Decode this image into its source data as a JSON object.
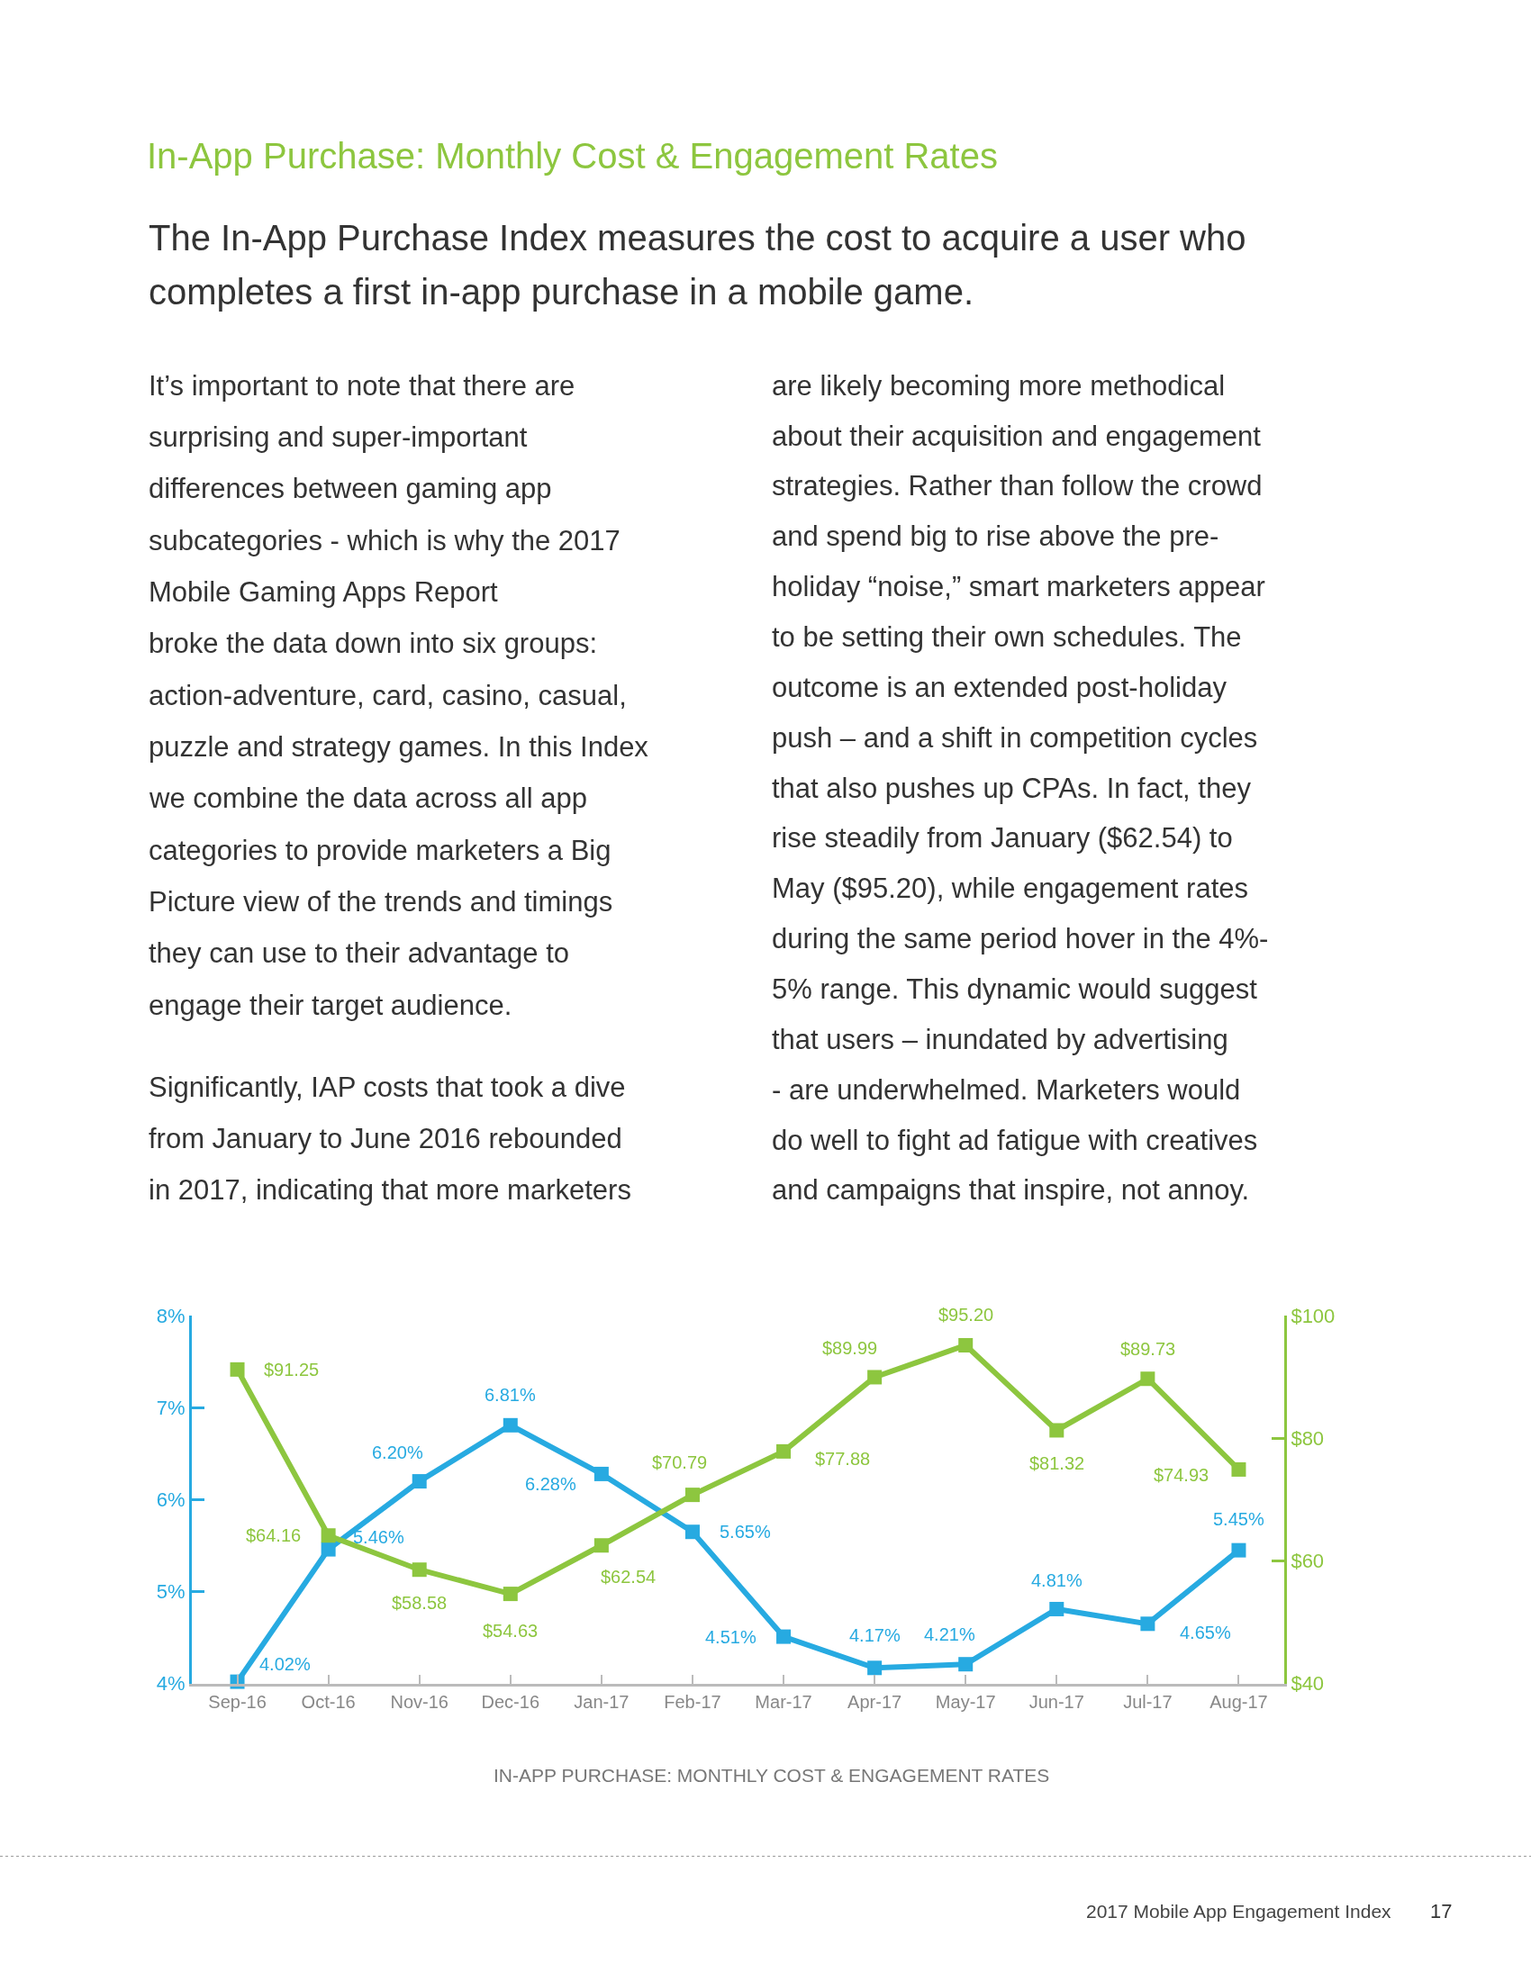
{
  "chart_data": {
    "type": "line",
    "title": "In-App Purchase: Monthly Cost & Engagement Rates",
    "subtitle": "The In-App Purchase Index measures the cost to acquire a user who\ncompletes a first in-app purchase in a mobile game.",
    "annotations": [
      "It’s important to note that there are\nsurprising and super-important\ndifferences between gaming app\nsubcategories - which is why the 2017\nMobile Gaming Apps Report\nbroke the data down into six groups:\naction-adventure, card, casino, casual,\npuzzle and strategy games. In this Index\nwe combine the data across all app\ncategories to provide marketers a Big\nPicture view of the trends and timings\nthey can use to their advantage to\nengage their target audience.",
      "Significantly, IAP costs that took a dive\nfrom January to June 2016 rebounded\nin 2017, indicating that more marketers",
      "are likely becoming more methodical\nabout their acquisition and engagement\nstrategies. Rather than follow the crowd\nand spend big to rise above the pre-\nholiday “noise,” smart marketers appear\nto be setting their own schedules. The\noutcome is an extended post-holiday\npush – and a shift in competition cycles\nthat also pushes up CPAs. In fact, they\nrise steadily from January ($62.54) to\nMay ($95.20), while engagement rates\nduring the same period hover in the 4%-\n5% range. This dynamic would suggest\nthat users – inundated by advertising\n- are underwhelmed. Marketers would\ndo well to fight ad fatigue with creatives\nand campaigns that inspire, not annoy.",
      "IN-APP PURCHASE: MONTHLY COST & ENGAGEMENT RATES",
      "2017 Mobile App Engagement Index",
      "17"
    ],
    "categories": [
      "Sep-16",
      "Oct-16",
      "Nov-16",
      "Dec-16",
      "Jan-17",
      "Feb-17",
      "Mar-17",
      "Apr-17",
      "May-17",
      "Jun-17",
      "Jul-17",
      "Aug-17"
    ],
    "series": [
      {
        "color": "#27aae1",
        "values": [
          4.02,
          5.46,
          6.2,
          6.81,
          6.28,
          5.65,
          4.51,
          4.17,
          4.21,
          4.81,
          4.65,
          5.45
        ],
        "value_labels": [
          "4.02%",
          "5.46%",
          "6.20%",
          "6.81%",
          "6.28%",
          "5.65%",
          "4.51%",
          "4.17%",
          "4.21%",
          "4.81%",
          "4.65%",
          "5.45%"
        ]
      },
      {
        "color": "#8dc63f",
        "axis": "y2",
        "values": [
          91.25,
          64.16,
          58.58,
          54.63,
          62.54,
          70.79,
          77.88,
          89.99,
          95.2,
          81.32,
          89.73,
          74.93
        ],
        "value_labels": [
          "$91.25",
          "$64.16",
          "$58.58",
          "$54.63",
          "$62.54",
          "$70.79",
          "$77.88",
          "$89.99",
          "$95.20",
          "$81.32",
          "$89.73",
          "$74.93"
        ]
      }
    ],
    "ylim": [
      4,
      8
    ],
    "yticks": [
      {
        "value": 4,
        "label": "4%"
      },
      {
        "value": 5,
        "label": "5%"
      },
      {
        "value": 6,
        "label": "6%"
      },
      {
        "value": 7,
        "label": "7%"
      },
      {
        "value": 8,
        "label": "8%"
      }
    ],
    "y2lim": [
      40,
      100
    ],
    "y2ticks": [
      {
        "value": 40,
        "label": "$40"
      },
      {
        "value": 60,
        "label": "$60"
      },
      {
        "value": 80,
        "label": "$80"
      },
      {
        "value": 100,
        "label": "$100"
      }
    ],
    "marker": "square",
    "line_style": "solid"
  }
}
